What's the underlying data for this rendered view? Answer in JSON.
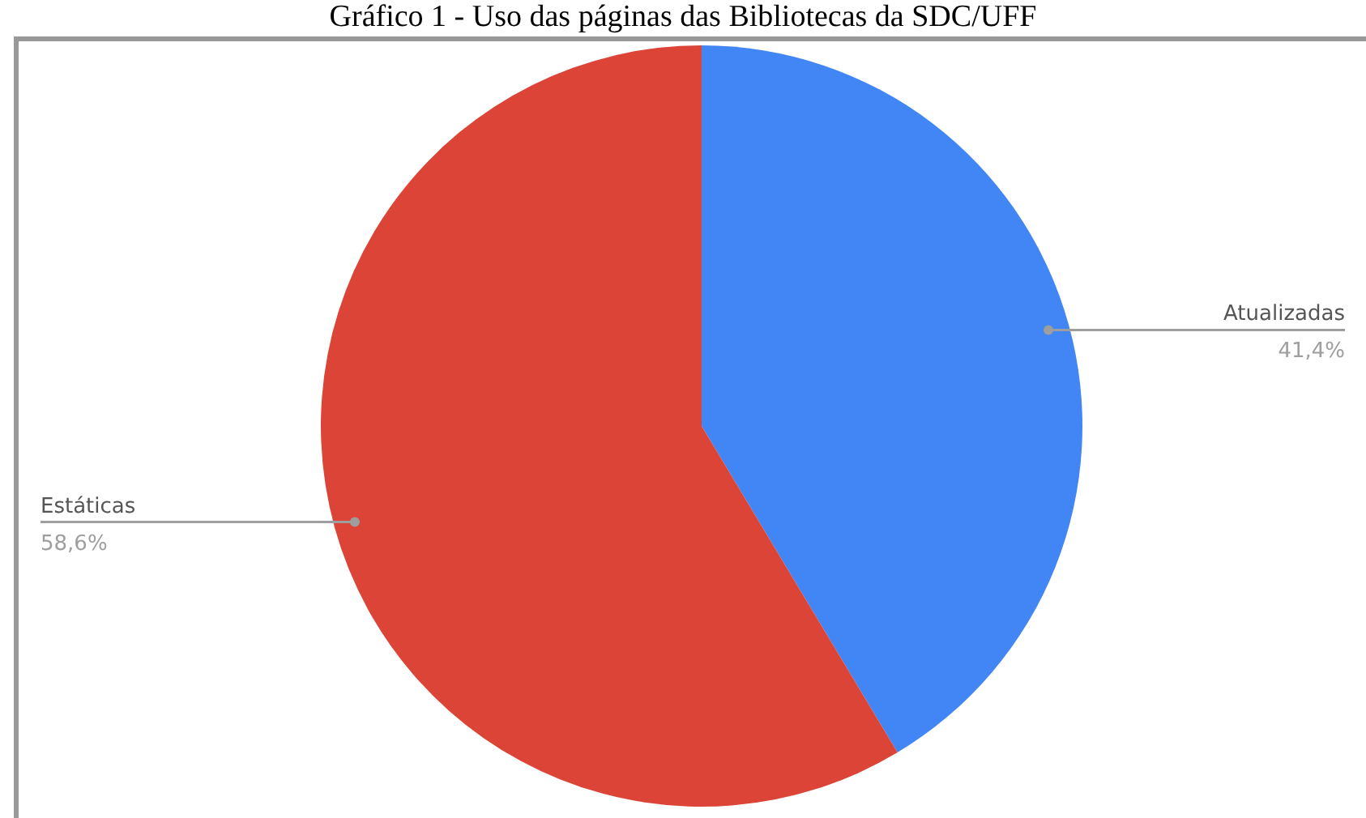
{
  "chart_data": {
    "type": "pie",
    "title": "Gráfico 1 - Uso das páginas das Bibliotecas da SDC/UFF",
    "categories": [
      "Atualizadas",
      "Estáticas"
    ],
    "values": [
      41.4,
      58.6
    ],
    "colors": [
      "#4285f4",
      "#db4437"
    ],
    "value_labels": [
      "41,4%",
      "58,6%"
    ]
  }
}
